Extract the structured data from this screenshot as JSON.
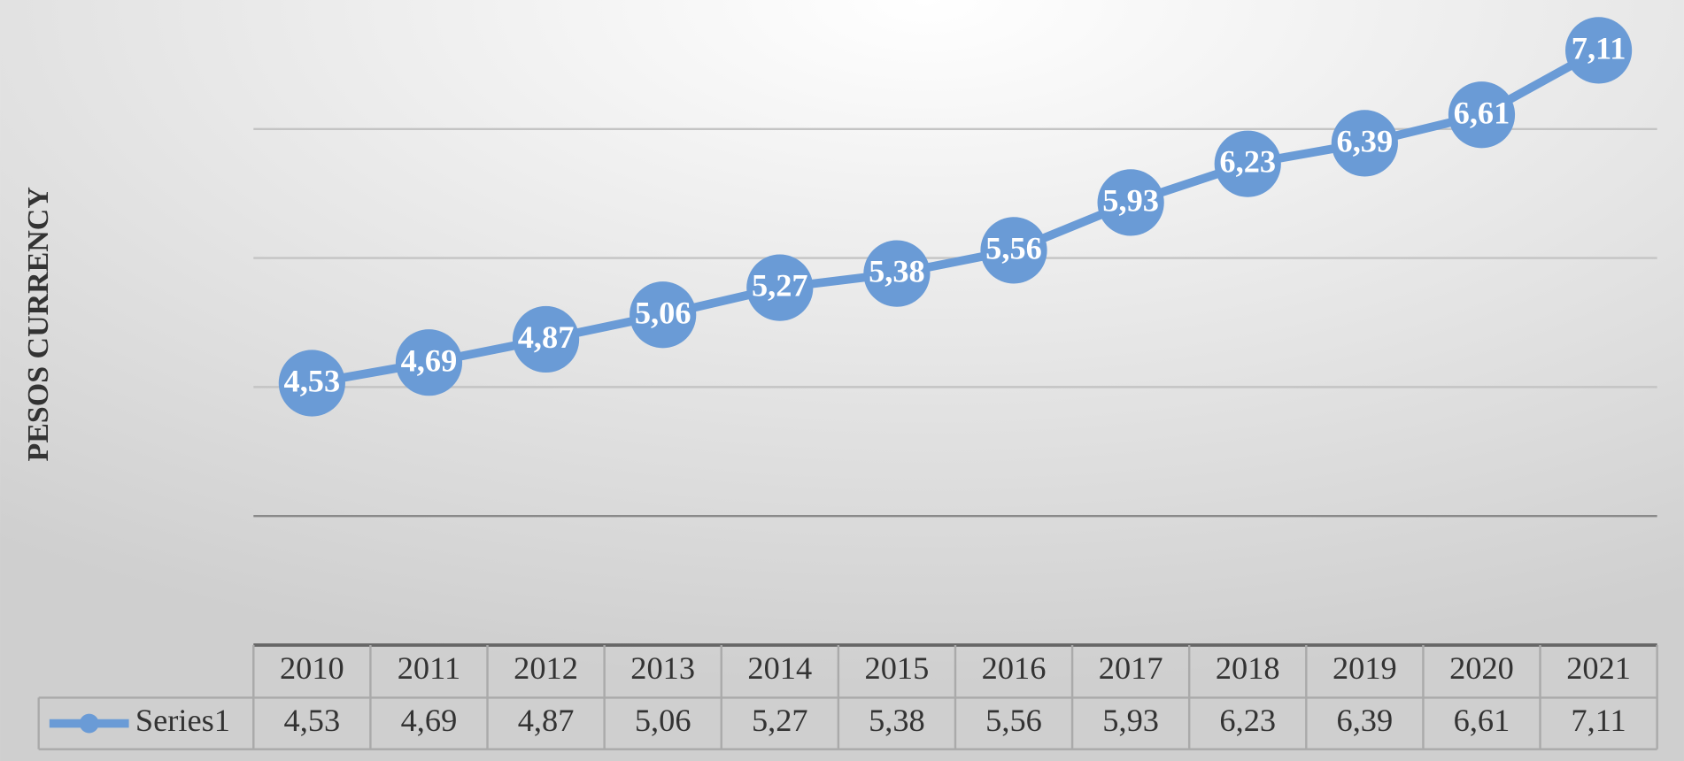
{
  "chart_data": {
    "type": "line",
    "y_label": "PESOS CURRENCY",
    "categories": [
      "2010",
      "2011",
      "2012",
      "2013",
      "2014",
      "2015",
      "2016",
      "2017",
      "2018",
      "2019",
      "2020",
      "2021"
    ],
    "series": [
      {
        "name": "Series1",
        "color": "#6a9bd6",
        "values": [
          4.53,
          4.69,
          4.87,
          5.06,
          5.27,
          5.38,
          5.56,
          5.93,
          6.23,
          6.39,
          6.61,
          7.11
        ],
        "value_labels": [
          "4,53",
          "4,69",
          "4,87",
          "5,06",
          "5,27",
          "5,38",
          "5,56",
          "5,93",
          "6,23",
          "6,39",
          "6,61",
          "7,11"
        ]
      }
    ],
    "ylim": [
      2.5,
      7.5
    ],
    "yticks": [
      3.5,
      4.5,
      5.5,
      6.5
    ],
    "grid": true,
    "data_table": true
  }
}
